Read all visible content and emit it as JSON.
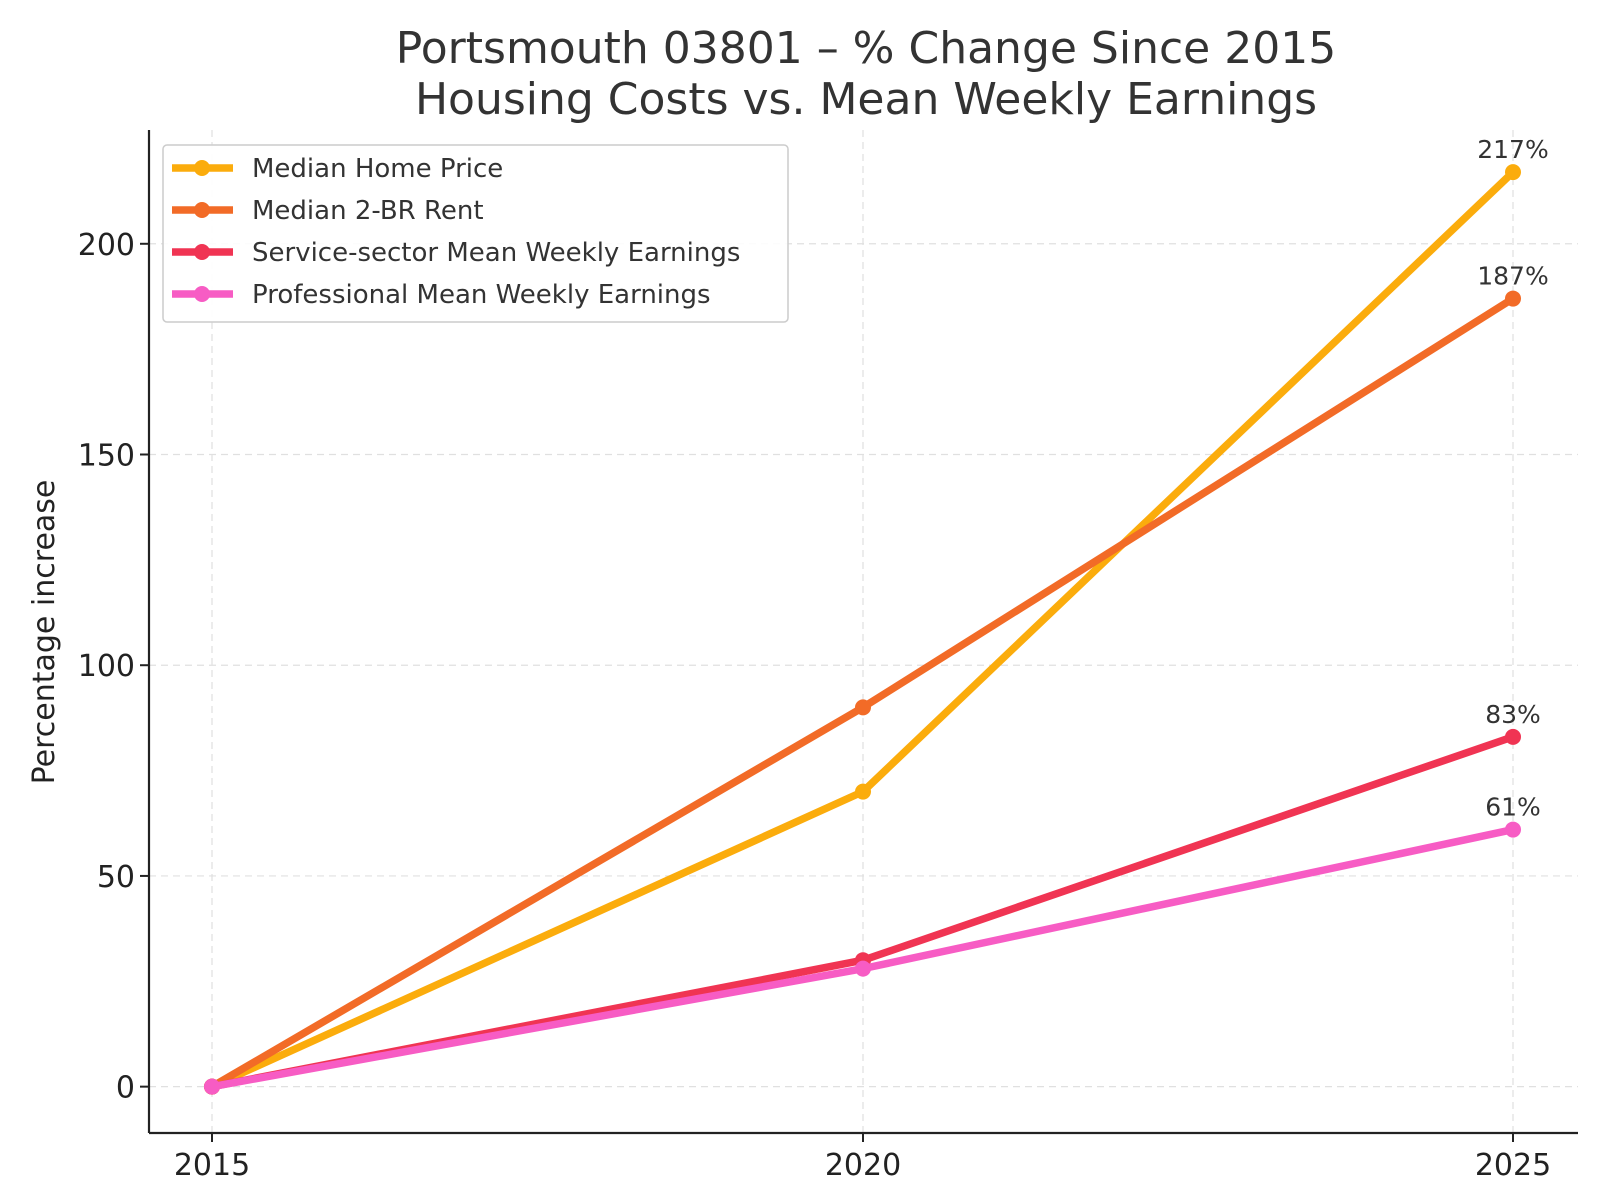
{
  "chart_data": {
    "type": "line",
    "title": [
      "Portsmouth 03801 – % Change Since 2015",
      "Housing Costs vs. Mean Weekly Earnings"
    ],
    "xlabel": "",
    "ylabel": "Percentage increase",
    "x": [
      "2015",
      "2020",
      "2025"
    ],
    "ylim": [
      -11,
      227
    ],
    "yticks": [
      0,
      50,
      100,
      150,
      200
    ],
    "grid": true,
    "legend_position": "top-left",
    "series": [
      {
        "name": "Median Home Price",
        "values": [
          0,
          70,
          217
        ],
        "color": "#FBAC0C",
        "end_label": "217%"
      },
      {
        "name": "Median 2-BR Rent",
        "values": [
          0,
          90,
          187
        ],
        "color": "#F26B27",
        "end_label": "187%"
      },
      {
        "name": "Service-sector Mean Weekly Earnings",
        "values": [
          0,
          30,
          83
        ],
        "color": "#F03453",
        "end_label": "83%"
      },
      {
        "name": "Professional Mean Weekly Earnings",
        "values": [
          0,
          28,
          61
        ],
        "color": "#F75CC4",
        "end_label": "61%"
      }
    ]
  }
}
